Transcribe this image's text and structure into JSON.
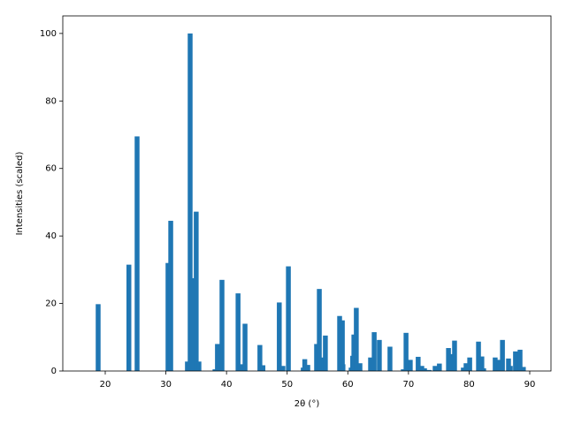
{
  "chart_data": {
    "type": "bar",
    "xlabel": "2θ (°)",
    "ylabel": "Intensities (scaled)",
    "color": "#1f77b4",
    "x": [
      18.83,
      23.9,
      25.25,
      30.35,
      30.8,
      33.55,
      34.0,
      34.6,
      35.0,
      35.45,
      38.1,
      38.5,
      39.25,
      41.9,
      42.6,
      43.05,
      45.5,
      46.0,
      48.7,
      49.3,
      50.2,
      52.65,
      52.9,
      53.4,
      54.85,
      55.3,
      56.0,
      56.3,
      58.65,
      59.1,
      59.2,
      60.55,
      60.8,
      61.0,
      61.4,
      62.0,
      63.75,
      64.35,
      65.2,
      66.95,
      69.15,
      69.6,
      70.3,
      71.6,
      72.2,
      72.65,
      73.4,
      74.4,
      75.1,
      76.6,
      77.0,
      77.6,
      79.05,
      79.5,
      80.1,
      81.55,
      82.1,
      82.4,
      84.3,
      84.9,
      85.5,
      86.5,
      86.8,
      87.65,
      88.4,
      88.95
    ],
    "values": [
      19.8,
      31.5,
      69.5,
      32,
      44.5,
      2.8,
      100,
      27.5,
      47.2,
      2.8,
      0.5,
      8,
      27,
      23,
      2,
      14,
      7.7,
      1.7,
      20.3,
      1.5,
      31,
      1,
      3.5,
      1.8,
      8,
      24.3,
      4,
      10.5,
      16.3,
      15,
      2,
      1,
      4.5,
      10.8,
      18.7,
      2.3,
      4,
      11.5,
      9.2,
      7.2,
      0.5,
      11.3,
      3.3,
      4.2,
      1.5,
      0.8,
      0.3,
      1.5,
      2.2,
      6.8,
      5,
      9,
      1,
      2.3,
      4,
      8.7,
      4.3,
      0.8,
      4,
      3.3,
      9.2,
      3.7,
      1.5,
      5.8,
      6.3,
      1.2
    ],
    "xlim": [
      13,
      93.5
    ],
    "ylim": [
      0,
      105.2
    ],
    "xticks": [
      20,
      30,
      40,
      50,
      60,
      70,
      80,
      90
    ],
    "yticks": [
      0,
      20,
      40,
      60,
      80,
      100
    ]
  }
}
